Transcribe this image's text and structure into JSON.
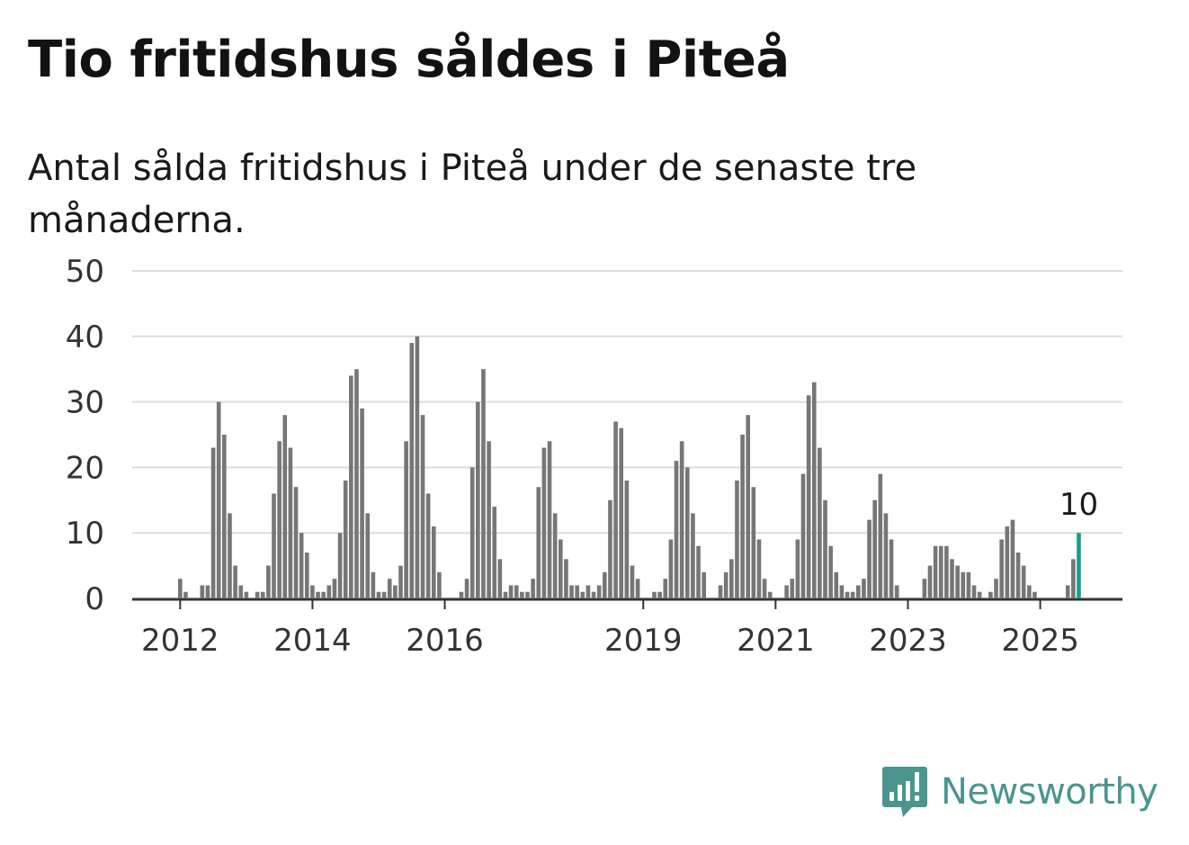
{
  "title": "Tio fritidshus såldes i Piteå",
  "subtitle": "Antal sålda fritidshus i Piteå under de senaste tre månaderna.",
  "logo": {
    "text": "Newsworthy",
    "icon": "newsworthy-logo-icon",
    "color": "#4a9590"
  },
  "chart_data": {
    "type": "bar",
    "title": "Tio fritidshus såldes i Piteå",
    "subtitle": "Antal sålda fritidshus i Piteå under de senaste tre månaderna.",
    "xlabel": "",
    "ylabel": "",
    "ylim": [
      0,
      50
    ],
    "y_ticks": [
      0,
      10,
      20,
      30,
      40,
      50
    ],
    "x_tick_labels": [
      "2012",
      "2014",
      "2016",
      "2019",
      "2021",
      "2023",
      "2025"
    ],
    "grid": true,
    "bar_color": "#767676",
    "highlight_color": "#1a9a8b",
    "highlight_label": "10",
    "start": "2011-05",
    "frequency": "monthly",
    "values": [
      0,
      0,
      0,
      0,
      0,
      0,
      0,
      0,
      3,
      1,
      0,
      0,
      2,
      2,
      23,
      30,
      25,
      13,
      5,
      2,
      1,
      0,
      1,
      1,
      5,
      16,
      24,
      28,
      23,
      17,
      10,
      7,
      2,
      1,
      1,
      2,
      3,
      10,
      18,
      34,
      35,
      29,
      13,
      4,
      1,
      1,
      3,
      2,
      5,
      24,
      39,
      40,
      28,
      16,
      11,
      4,
      0,
      0,
      0,
      1,
      3,
      20,
      30,
      35,
      24,
      14,
      6,
      1,
      2,
      2,
      1,
      1,
      3,
      17,
      23,
      24,
      13,
      9,
      6,
      2,
      2,
      1,
      2,
      1,
      2,
      4,
      15,
      27,
      26,
      18,
      5,
      3,
      0,
      0,
      1,
      1,
      3,
      9,
      21,
      24,
      20,
      13,
      8,
      4,
      0,
      0,
      2,
      4,
      6,
      18,
      25,
      28,
      17,
      9,
      3,
      1,
      0,
      0,
      2,
      3,
      9,
      19,
      31,
      33,
      23,
      15,
      8,
      4,
      2,
      1,
      1,
      2,
      3,
      12,
      15,
      19,
      13,
      9,
      2,
      0,
      0,
      0,
      0,
      3,
      5,
      8,
      8,
      8,
      6,
      5,
      4,
      4,
      2,
      1,
      0,
      1,
      3,
      9,
      11,
      12,
      7,
      5,
      2,
      1,
      0,
      0,
      0,
      0,
      0,
      2,
      6,
      10
    ]
  }
}
